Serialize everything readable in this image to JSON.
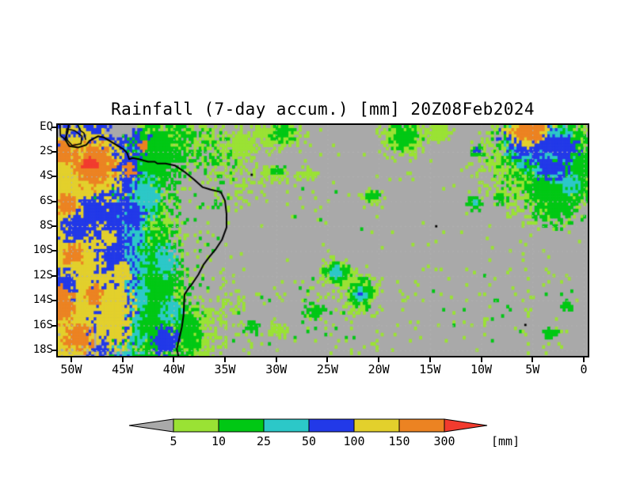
{
  "title": "Rainfall (7-day accum.) [mm] 20Z08Feb2024",
  "axes": {
    "lat_ticks": [
      {
        "label": "EQ",
        "lat": 0
      },
      {
        "label": "2S",
        "lat": -2
      },
      {
        "label": "4S",
        "lat": -4
      },
      {
        "label": "6S",
        "lat": -6
      },
      {
        "label": "8S",
        "lat": -8
      },
      {
        "label": "10S",
        "lat": -10
      },
      {
        "label": "12S",
        "lat": -12
      },
      {
        "label": "14S",
        "lat": -14
      },
      {
        "label": "16S",
        "lat": -16
      },
      {
        "label": "18S",
        "lat": -18
      }
    ],
    "lon_ticks": [
      {
        "label": "50W",
        "lon": -50
      },
      {
        "label": "45W",
        "lon": -45
      },
      {
        "label": "40W",
        "lon": -40
      },
      {
        "label": "35W",
        "lon": -35
      },
      {
        "label": "30W",
        "lon": -30
      },
      {
        "label": "25W",
        "lon": -25
      },
      {
        "label": "20W",
        "lon": -20
      },
      {
        "label": "15W",
        "lon": -15
      },
      {
        "label": "10W",
        "lon": -10
      },
      {
        "label": "5W",
        "lon": -5
      },
      {
        "label": "0",
        "lon": 0
      }
    ]
  },
  "colorbar": {
    "tick_labels": [
      "5",
      "10",
      "25",
      "50",
      "100",
      "150",
      "300"
    ],
    "unit_label": "[mm]"
  },
  "chart_data": {
    "type": "heatmap",
    "title": "Rainfall (7-day accum.) [mm] 20Z08Feb2024",
    "units": "mm",
    "levels_mm": [
      5,
      10,
      25,
      50,
      100,
      150,
      300
    ],
    "level_index_meaning": [
      "<5",
      "5-10",
      "10-25",
      "25-50",
      "50-100",
      "100-150",
      "150-300",
      ">300"
    ],
    "level_colors": [
      "#a9a9a9",
      "#9ae234",
      "#00c814",
      "#2cc8c8",
      "#2239e8",
      "#e3d02c",
      "#ec8322",
      "#f23b2e"
    ],
    "lon_range": [
      -51.31,
      0.39
    ],
    "lat_range": [
      -18.45,
      0.16
    ],
    "gridline_color": "#b2b2b2",
    "cell_deg": 0.25,
    "features_format": [
      "lon",
      "lat",
      "rx_deg",
      "ry_deg",
      "level_index",
      "edge_noise"
    ],
    "features": [
      [
        -41.0,
        -3.2,
        6.8,
        4.2,
        1,
        1.2
      ],
      [
        -44.0,
        -3.5,
        7.5,
        4.6,
        2,
        0.8
      ],
      [
        -41.5,
        -13.0,
        5.5,
        6.0,
        1,
        1.1
      ],
      [
        -42.3,
        -13.5,
        4.2,
        5.8,
        2,
        0.8
      ],
      [
        -38.2,
        -16.0,
        1.6,
        2.8,
        1,
        1.0
      ],
      [
        -38.6,
        -16.3,
        1.1,
        2.3,
        2,
        0.9
      ],
      [
        -44.6,
        -10.5,
        1.9,
        7.6,
        3,
        1.0
      ],
      [
        -42.8,
        -5.6,
        1.2,
        1.6,
        3,
        1.1
      ],
      [
        -40.8,
        -10.8,
        1.0,
        1.2,
        3,
        1.2
      ],
      [
        -40.3,
        -14.8,
        0.9,
        1.0,
        3,
        1.2
      ],
      [
        -46.8,
        -11.0,
        2.7,
        7.8,
        4,
        0.8
      ],
      [
        -47.6,
        -1.1,
        4.2,
        2.0,
        4,
        0.7
      ],
      [
        -44.9,
        -4.0,
        1.3,
        1.6,
        4,
        0.9
      ],
      [
        -44.0,
        -7.0,
        1.1,
        1.0,
        4,
        1.0
      ],
      [
        -40.8,
        -17.3,
        1.1,
        1.0,
        4,
        0.9
      ],
      [
        -50.0,
        -12.0,
        2.9,
        7.6,
        5,
        0.7
      ],
      [
        -48.6,
        -3.4,
        3.6,
        3.0,
        5,
        0.7
      ],
      [
        -50.5,
        -6.5,
        1.6,
        3.0,
        5,
        0.8
      ],
      [
        -45.9,
        -14.8,
        1.7,
        2.6,
        5,
        0.9
      ],
      [
        -49.5,
        -8.2,
        1.5,
        1.1,
        4,
        0.9
      ],
      [
        -50.9,
        -13.0,
        1.4,
        1.4,
        4,
        0.9
      ],
      [
        -47.9,
        -6.6,
        1.4,
        1.1,
        4,
        0.9
      ],
      [
        -46.3,
        -9.0,
        0.8,
        0.6,
        5,
        0.9
      ],
      [
        -45.1,
        -11.8,
        0.9,
        0.7,
        5,
        0.9
      ],
      [
        -47.8,
        -3.1,
        2.0,
        1.6,
        6,
        0.7
      ],
      [
        -48.1,
        -3.0,
        0.75,
        0.5,
        7,
        0.8
      ],
      [
        -50.7,
        -2.1,
        1.0,
        0.8,
        6,
        0.9
      ],
      [
        -43.0,
        -1.5,
        0.55,
        0.45,
        6,
        0.8
      ],
      [
        -44.3,
        -3.5,
        0.6,
        0.5,
        6,
        0.9
      ],
      [
        -50.4,
        -6.2,
        0.9,
        0.7,
        6,
        0.9
      ],
      [
        -49.9,
        -10.3,
        1.0,
        0.8,
        6,
        0.9
      ],
      [
        -50.8,
        -14.3,
        1.1,
        1.3,
        6,
        0.8
      ],
      [
        -49.3,
        -17.0,
        1.3,
        1.0,
        6,
        0.8
      ],
      [
        -47.7,
        -13.5,
        0.8,
        0.7,
        6,
        0.9
      ],
      [
        -37.7,
        -6.0,
        2.7,
        3.3,
        0,
        0.9
      ],
      [
        -36.9,
        -10.2,
        2.7,
        4.3,
        0,
        0.8
      ],
      [
        -45.2,
        -0.25,
        1.3,
        0.6,
        0,
        0.9
      ],
      [
        -3.6,
        -2.6,
        5.2,
        3.8,
        1,
        1.1
      ],
      [
        -3.3,
        -2.3,
        4.3,
        3.1,
        2,
        0.9
      ],
      [
        -2.6,
        -5.6,
        2.3,
        1.9,
        2,
        1.1
      ],
      [
        -4.3,
        -1.5,
        2.9,
        1.9,
        3,
        0.9
      ],
      [
        -1.6,
        -3.6,
        1.4,
        1.1,
        3,
        1.0
      ],
      [
        -5.3,
        -1.0,
        2.4,
        1.5,
        4,
        0.8
      ],
      [
        -2.1,
        -1.7,
        1.6,
        1.0,
        4,
        0.9
      ],
      [
        -2.9,
        -3.3,
        1.9,
        0.8,
        4,
        1.0
      ],
      [
        -5.4,
        -0.4,
        2.0,
        1.1,
        5,
        0.8
      ],
      [
        -5.3,
        -0.3,
        1.5,
        0.85,
        6,
        0.7
      ],
      [
        -0.2,
        -3.6,
        1.3,
        1.6,
        2,
        1.0
      ],
      [
        -1.3,
        -4.7,
        0.8,
        0.6,
        3,
        1.1
      ],
      [
        -10.4,
        -1.9,
        0.7,
        0.5,
        2,
        0.9
      ],
      [
        -10.45,
        -1.95,
        0.28,
        0.22,
        4,
        0.5
      ],
      [
        -10.5,
        -6.1,
        0.75,
        0.6,
        2,
        0.9
      ],
      [
        -10.6,
        -6.15,
        0.3,
        0.25,
        3,
        0.9
      ],
      [
        -8.1,
        -5.8,
        0.55,
        0.45,
        2,
        0.9
      ],
      [
        -17.6,
        -0.9,
        2.0,
        1.4,
        1,
        1.0
      ],
      [
        -17.5,
        -0.8,
        1.4,
        0.9,
        2,
        0.9
      ],
      [
        -14.4,
        -0.5,
        1.1,
        0.7,
        1,
        1.1
      ],
      [
        -30.0,
        -0.6,
        2.4,
        0.9,
        1,
        1.2
      ],
      [
        -29.5,
        -0.5,
        1.1,
        0.55,
        2,
        1.0
      ],
      [
        -33.5,
        -1.6,
        1.3,
        0.9,
        1,
        1.1
      ],
      [
        -24.1,
        -11.8,
        1.7,
        1.1,
        1,
        0.9
      ],
      [
        -24.1,
        -11.8,
        1.2,
        0.8,
        2,
        0.8
      ],
      [
        -24.3,
        -11.7,
        0.6,
        0.4,
        3,
        0.8
      ],
      [
        -21.7,
        -13.4,
        1.6,
        1.4,
        1,
        0.9
      ],
      [
        -21.7,
        -13.4,
        1.15,
        1.0,
        2,
        0.8
      ],
      [
        -21.75,
        -13.45,
        0.6,
        0.5,
        3,
        0.8
      ],
      [
        -21.8,
        -13.5,
        0.2,
        0.18,
        4,
        0.5
      ],
      [
        -30.0,
        -3.6,
        1.4,
        0.6,
        1,
        1.0
      ],
      [
        -29.8,
        -3.55,
        0.75,
        0.35,
        2,
        0.9
      ],
      [
        -27.0,
        -3.8,
        0.9,
        0.45,
        1,
        1.1
      ],
      [
        -20.6,
        -5.6,
        1.0,
        0.6,
        1,
        1.0
      ],
      [
        -20.6,
        -5.55,
        0.6,
        0.4,
        2,
        0.9
      ],
      [
        -32.4,
        -16.2,
        0.7,
        0.5,
        2,
        0.9
      ],
      [
        -3.2,
        -16.6,
        0.6,
        0.45,
        2,
        1.0
      ],
      [
        -1.6,
        -14.4,
        0.55,
        0.4,
        2,
        1.0
      ],
      [
        -26.3,
        -14.8,
        0.8,
        0.5,
        2,
        1.1
      ],
      [
        -29.9,
        -16.3,
        0.8,
        0.5,
        1,
        1.0
      ]
    ],
    "speckle_zones": [
      {
        "lon0": -36.0,
        "lon1": 0.39,
        "lat0": 0.16,
        "lat1": -18.45,
        "density": 0.012,
        "cats": [
          1
        ]
      },
      {
        "lon0": -34.5,
        "lon1": -20.0,
        "lat0": -12.0,
        "lat1": -18.45,
        "density": 0.06,
        "cats": [
          1,
          1,
          2
        ]
      },
      {
        "lon0": -27.0,
        "lon1": -17.0,
        "lat0": -13.0,
        "lat1": -17.2,
        "density": 0.035,
        "cats": [
          1
        ]
      },
      {
        "lon0": -34.5,
        "lon1": -24.0,
        "lat0": 0.16,
        "lat1": -2.3,
        "density": 0.05,
        "cats": [
          1,
          1,
          2
        ]
      },
      {
        "lon0": -41.2,
        "lon1": -35.6,
        "lat0": -3.4,
        "lat1": -13.2,
        "density": 0.1,
        "cats": [
          1,
          1,
          2
        ]
      },
      {
        "lon0": -18.0,
        "lon1": -1.0,
        "lat0": -11.0,
        "lat1": -17.6,
        "density": 0.035,
        "cats": [
          1,
          1,
          2
        ]
      },
      {
        "lon0": -31.5,
        "lon1": -19.5,
        "lat0": -4.4,
        "lat1": -8.6,
        "density": 0.022,
        "cats": [
          1,
          2
        ]
      },
      {
        "lon0": -9.5,
        "lon1": -1.0,
        "lat0": -6.0,
        "lat1": -10.0,
        "density": 0.03,
        "cats": [
          1
        ]
      },
      {
        "lon0": -25.0,
        "lon1": -12.0,
        "lat0": -2.2,
        "lat1": -4.4,
        "density": 0.015,
        "cats": [
          1
        ]
      }
    ],
    "coastline": [
      [
        [
          -50.25,
          0.16
        ],
        [
          -50.35,
          -0.4
        ],
        [
          -50.6,
          -1.0
        ],
        [
          -50.2,
          -1.55
        ],
        [
          -49.3,
          -1.65
        ],
        [
          -48.55,
          -1.45
        ],
        [
          -48.2,
          -1.1
        ],
        [
          -47.4,
          -0.75
        ],
        [
          -46.8,
          -0.85
        ],
        [
          -46.0,
          -1.25
        ],
        [
          -45.3,
          -1.6
        ],
        [
          -44.9,
          -1.8
        ],
        [
          -44.55,
          -2.1
        ],
        [
          -44.35,
          -2.6
        ],
        [
          -44.0,
          -2.5
        ],
        [
          -43.4,
          -2.6
        ],
        [
          -42.5,
          -2.8
        ],
        [
          -41.85,
          -2.8
        ],
        [
          -41.6,
          -2.95
        ],
        [
          -40.8,
          -2.95
        ],
        [
          -39.9,
          -3.1
        ],
        [
          -38.9,
          -3.65
        ],
        [
          -38.0,
          -4.25
        ],
        [
          -37.2,
          -4.85
        ],
        [
          -36.4,
          -5.05
        ],
        [
          -35.4,
          -5.25
        ],
        [
          -35.0,
          -5.95
        ],
        [
          -34.85,
          -7.0
        ],
        [
          -34.85,
          -8.1
        ],
        [
          -35.3,
          -9.1
        ],
        [
          -35.9,
          -9.85
        ],
        [
          -36.5,
          -10.45
        ],
        [
          -37.1,
          -11.1
        ],
        [
          -37.6,
          -11.9
        ],
        [
          -38.25,
          -12.7
        ],
        [
          -38.55,
          -13.0
        ],
        [
          -38.95,
          -13.5
        ],
        [
          -39.0,
          -14.4
        ],
        [
          -39.05,
          -15.2
        ],
        [
          -39.2,
          -16.1
        ],
        [
          -39.45,
          -17.0
        ],
        [
          -39.7,
          -17.9
        ],
        [
          -39.55,
          -18.45
        ]
      ],
      [
        [
          -50.45,
          -0.15
        ],
        [
          -49.65,
          -0.3
        ],
        [
          -48.95,
          -0.75
        ],
        [
          -49.05,
          -1.35
        ],
        [
          -49.9,
          -1.5
        ],
        [
          -50.45,
          -1.0
        ],
        [
          -50.45,
          -0.15
        ]
      ],
      [
        [
          -51.1,
          0.16
        ],
        [
          -51.05,
          -0.7
        ],
        [
          -50.6,
          -1.0
        ]
      ],
      [
        [
          -49.35,
          0.16
        ],
        [
          -49.1,
          -0.3
        ],
        [
          -48.75,
          -0.5
        ],
        [
          -48.6,
          -1.0
        ]
      ]
    ],
    "islands": [
      [
        -32.4,
        -3.85
      ],
      [
        -14.4,
        -8.0
      ],
      [
        -5.7,
        -15.95
      ]
    ]
  }
}
